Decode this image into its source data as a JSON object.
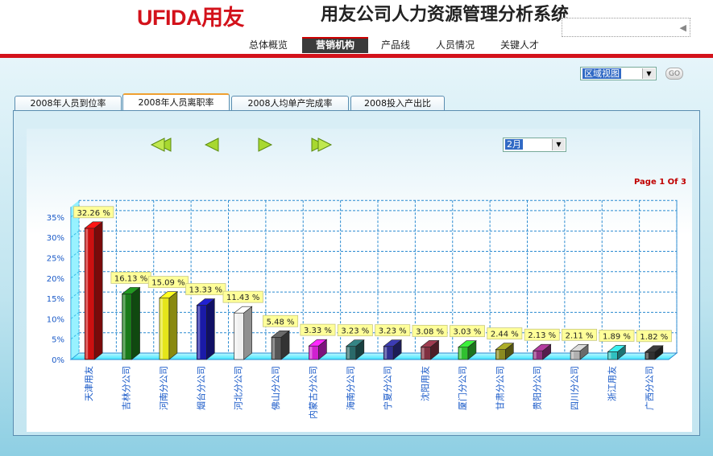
{
  "header": {
    "logo_text": "UFIDA用友",
    "title": "用友公司人力资源管理分析系统"
  },
  "nav": {
    "items": [
      {
        "label": "总体概览",
        "active": false
      },
      {
        "label": "营销机构",
        "active": true
      },
      {
        "label": "产品线",
        "active": false
      },
      {
        "label": "人员情况",
        "active": false
      },
      {
        "label": "关键人才",
        "active": false
      }
    ]
  },
  "view_select": {
    "value": "区域视图"
  },
  "go_button": {
    "label": "GO"
  },
  "tabs": [
    {
      "label": "2008年人员到位率",
      "active": false
    },
    {
      "label": "2008年人员离职率",
      "active": true
    },
    {
      "label": "2008人均单产完成率",
      "active": false
    },
    {
      "label": "2008投入产出比",
      "active": false
    }
  ],
  "month_select": {
    "value": "2月"
  },
  "pagination": {
    "text": "Page 1 Of 3"
  },
  "chart_data": {
    "type": "bar",
    "categories": [
      "天津用友",
      "吉林分公司",
      "河南分公司",
      "烟台分公司",
      "河北分公司",
      "佛山分公司",
      "内蒙古分公司",
      "海南分公司",
      "宁夏分公司",
      "沈阳用友",
      "厦门分公司",
      "甘肃分公司",
      "贵阳分公司",
      "四川分公司",
      "浙江用友",
      "广西分公司"
    ],
    "values": [
      32.26,
      16.13,
      15.09,
      13.33,
      11.43,
      5.48,
      3.33,
      3.23,
      3.23,
      3.08,
      3.03,
      2.44,
      2.13,
      2.11,
      1.89,
      1.82
    ],
    "data_labels": [
      "32.26 %",
      "16.13 %",
      "15.09 %",
      "13.33 %",
      "11.43 %",
      "5.48 %",
      "3.33 %",
      "3.23 %",
      "3.23 %",
      "3.08 %",
      "3.03 %",
      "2.44 %",
      "2.13 %",
      "2.11 %",
      "1.89 %",
      "1.82 %"
    ],
    "yticks": [
      "0%",
      "5%",
      "10%",
      "15%",
      "20%",
      "25%",
      "30%",
      "35%"
    ],
    "ylim": [
      0,
      35
    ],
    "grid": true,
    "colors": [
      "#cc1010",
      "#1a7a1a",
      "#e5e51a",
      "#1a1aa8",
      "#f0f0f0",
      "#555555",
      "#d020d0",
      "#2a6a6a",
      "#303090",
      "#803040",
      "#30c030",
      "#8a8a20",
      "#903080",
      "#b0b0b0",
      "#30c0c0",
      "#303030"
    ]
  }
}
